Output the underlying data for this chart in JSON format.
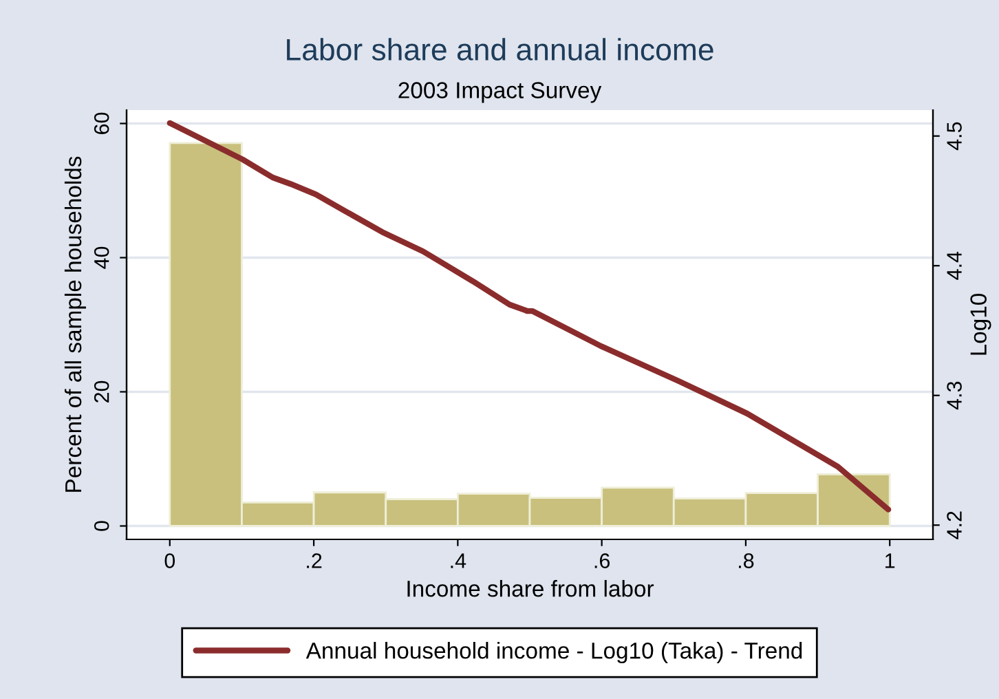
{
  "chart_data": {
    "type": "histogram",
    "title": "Labor share and annual income",
    "subtitle": "2003 Impact Survey",
    "xlabel": "Income share from labor",
    "ylabel": "Percent of all sample households",
    "y2label": "Log10",
    "series": [
      {
        "type": "histogram",
        "color": "#c9c07d",
        "bins": [
          0,
          0.1,
          0.2,
          0.3,
          0.4,
          0.5,
          0.6,
          0.7,
          0.8,
          0.9,
          1.0
        ],
        "values": [
          57.1,
          3.5,
          5.0,
          4.0,
          4.8,
          4.2,
          5.7,
          4.1,
          4.9,
          7.7
        ]
      },
      {
        "type": "line",
        "axis": "y2",
        "name": "Annual household income - Log10 (Taka) - Trend",
        "color": "#8b2c2c",
        "x": [
          0,
          0.101,
          0.143,
          0.168,
          0.203,
          0.244,
          0.295,
          0.352,
          0.421,
          0.472,
          0.497,
          0.504,
          0.599,
          0.707,
          0.802,
          0.928,
          0.998
        ],
        "values": [
          4.51,
          4.482,
          4.468,
          4.463,
          4.455,
          4.442,
          4.426,
          4.411,
          4.388,
          4.37,
          4.365,
          4.365,
          4.338,
          4.311,
          4.286,
          4.245,
          4.212
        ]
      }
    ],
    "xlim": [
      -0.06,
      1.06
    ],
    "xticks": [
      {
        "value": 0,
        "label": "0"
      },
      {
        "value": 0.2,
        "label": ".2"
      },
      {
        "value": 0.4,
        "label": ".4"
      },
      {
        "value": 0.6,
        "label": ".6"
      },
      {
        "value": 0.8,
        "label": ".8"
      },
      {
        "value": 1,
        "label": "1"
      }
    ],
    "ylim": [
      -2,
      62
    ],
    "yticks": [
      0,
      20,
      40,
      60
    ],
    "y2lim": [
      4.189,
      4.52
    ],
    "y2ticks": [
      4.2,
      4.3,
      4.4,
      4.5
    ],
    "grid": "y",
    "legend": "bottom"
  }
}
